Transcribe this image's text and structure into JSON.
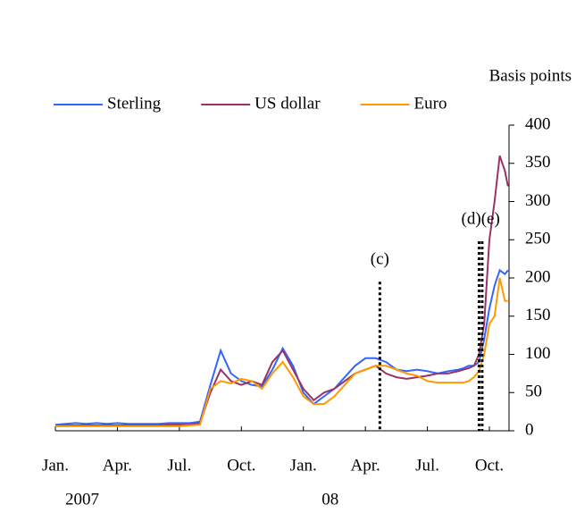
{
  "chart_data": {
    "type": "line",
    "y_axis_label": "Basis points",
    "xlim": [
      0,
      21.95
    ],
    "ylim": [
      0,
      400
    ],
    "yticks": [
      0,
      50,
      100,
      150,
      200,
      250,
      300,
      350,
      400
    ],
    "xticks": [
      {
        "value": 0,
        "label": "Jan."
      },
      {
        "value": 3,
        "label": "Apr."
      },
      {
        "value": 6,
        "label": "Jul."
      },
      {
        "value": 9,
        "label": "Oct."
      },
      {
        "value": 12,
        "label": "Jan."
      },
      {
        "value": 15,
        "label": "Apr."
      },
      {
        "value": 18,
        "label": "Jul."
      },
      {
        "value": 21,
        "label": "Oct."
      }
    ],
    "year_labels": [
      {
        "value": 0,
        "label": "2007"
      },
      {
        "value": 12,
        "label": "08"
      }
    ],
    "legend": "top",
    "x": [
      0,
      0.5,
      1,
      1.5,
      2,
      2.5,
      3,
      3.5,
      4,
      4.5,
      5,
      5.5,
      6,
      6.5,
      7,
      7.5,
      8,
      8.5,
      9,
      9.5,
      10,
      10.5,
      11,
      11.5,
      12,
      12.5,
      13,
      13.5,
      14,
      14.5,
      15,
      15.5,
      16,
      16.5,
      17,
      17.5,
      18,
      18.5,
      19,
      19.5,
      19.75,
      20,
      20.25,
      20.5,
      20.75,
      21,
      21.25,
      21.5,
      21.75,
      21.9
    ],
    "series": [
      {
        "name": "Sterling",
        "color": "#3366ff",
        "values": [
          8,
          9,
          10,
          9,
          10,
          9,
          10,
          9,
          9,
          9,
          9,
          10,
          10,
          10,
          12,
          60,
          105,
          75,
          65,
          60,
          58,
          80,
          108,
          85,
          50,
          35,
          45,
          55,
          70,
          85,
          95,
          95,
          90,
          80,
          78,
          80,
          78,
          75,
          78,
          80,
          82,
          85,
          85,
          90,
          120,
          160,
          190,
          210,
          205,
          210
        ]
      },
      {
        "name": "US dollar",
        "color": "#993366",
        "values": [
          6,
          7,
          7,
          7,
          7,
          7,
          7,
          7,
          7,
          7,
          7,
          8,
          8,
          8,
          10,
          50,
          80,
          65,
          60,
          65,
          60,
          90,
          105,
          80,
          55,
          40,
          50,
          55,
          65,
          75,
          80,
          85,
          75,
          70,
          68,
          70,
          72,
          75,
          75,
          78,
          80,
          82,
          85,
          100,
          140,
          250,
          300,
          360,
          340,
          320
        ]
      },
      {
        "name": "Euro",
        "color": "#ff9900",
        "values": [
          6,
          6,
          6,
          6,
          6,
          6,
          6,
          6,
          6,
          6,
          6,
          6,
          6,
          7,
          8,
          55,
          65,
          62,
          68,
          65,
          55,
          75,
          90,
          70,
          45,
          35,
          35,
          45,
          60,
          75,
          80,
          85,
          85,
          80,
          75,
          72,
          65,
          63,
          63,
          63,
          63,
          65,
          70,
          78,
          100,
          140,
          150,
          200,
          170,
          170
        ]
      }
    ],
    "annotations": [
      {
        "text": "(c)",
        "x": [
          15.7
        ],
        "y": 195
      },
      {
        "text": "(d)(e)",
        "x": [
          20.5,
          20.65
        ],
        "y": 248
      }
    ]
  }
}
